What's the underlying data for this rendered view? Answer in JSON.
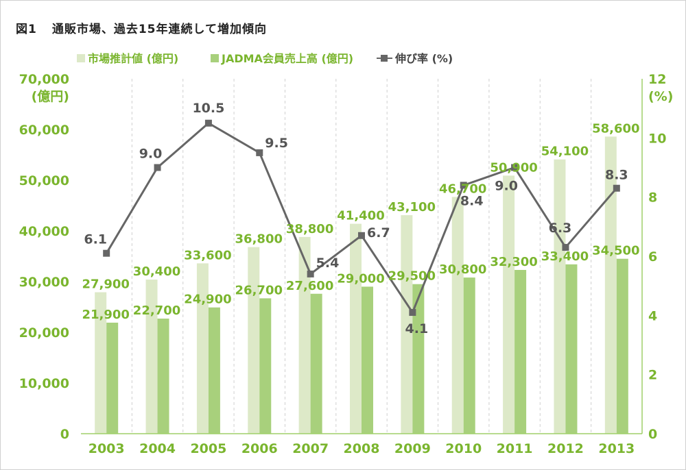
{
  "figure": {
    "label": "図1",
    "title": "通販市場、過去15年連続して増加傾向"
  },
  "colors": {
    "market_bar": "#dde9c8",
    "jadma_bar": "#a8d07c",
    "rate_line": "#666666",
    "axis_text": "#7ab52e",
    "grid": "#cfcfcf",
    "axis_line": "#9fcf69",
    "rate_label": "#555555"
  },
  "chart_data": {
    "type": "bar",
    "title": "通販市場、過去15年連続して増加傾向",
    "categories": [
      "2003",
      "2004",
      "2005",
      "2006",
      "2007",
      "2008",
      "2009",
      "2010",
      "2011",
      "2012",
      "2013"
    ],
    "series": [
      {
        "name": "市場推計値 (億円)",
        "kind": "bar",
        "axis": "left",
        "values": [
          27900,
          30400,
          33600,
          36800,
          38800,
          41400,
          43100,
          46700,
          50900,
          54100,
          58600
        ],
        "labels": [
          "27,900",
          "30,400",
          "33,600",
          "36,800",
          "38,800",
          "41,400",
          "43,100",
          "46,700",
          "50,900",
          "54,100",
          "58,600"
        ]
      },
      {
        "name": "JADMA会員売上高 (億円)",
        "kind": "bar",
        "axis": "left",
        "values": [
          21900,
          22700,
          24900,
          26700,
          27600,
          29000,
          29500,
          30800,
          32300,
          33400,
          34500
        ],
        "labels": [
          "21,900",
          "22,700",
          "24,900",
          "26,700",
          "27,600",
          "29,000",
          "29,500",
          "30,800",
          "32,300",
          "33,400",
          "34,500"
        ]
      },
      {
        "name": "伸び率 (%)",
        "kind": "line",
        "axis": "right",
        "values": [
          6.1,
          9.0,
          10.5,
          9.5,
          5.4,
          6.7,
          4.1,
          8.4,
          9.0,
          6.3,
          8.3
        ],
        "labels": [
          "6.1",
          "9.0",
          "10.5",
          "9.5",
          "5.4",
          "6.7",
          "4.1",
          "8.4",
          "9.0",
          "6.3",
          "8.3"
        ]
      }
    ],
    "y_left": {
      "unit": "(億円)",
      "ylim": [
        0,
        70000
      ],
      "ticks": [
        0,
        10000,
        20000,
        30000,
        40000,
        50000,
        60000,
        70000
      ],
      "tick_labels": [
        "0",
        "10,000",
        "20,000",
        "30,000",
        "40,000",
        "50,000",
        "60,000",
        "70,000"
      ]
    },
    "y_right": {
      "unit": "(%)",
      "ylim": [
        0,
        12
      ],
      "ticks": [
        0,
        2,
        4,
        6,
        8,
        10,
        12
      ],
      "tick_labels": [
        "0",
        "2",
        "4",
        "6",
        "8",
        "10",
        "12"
      ]
    },
    "grid": "vertical dashed between categories",
    "legend_position": "top"
  }
}
